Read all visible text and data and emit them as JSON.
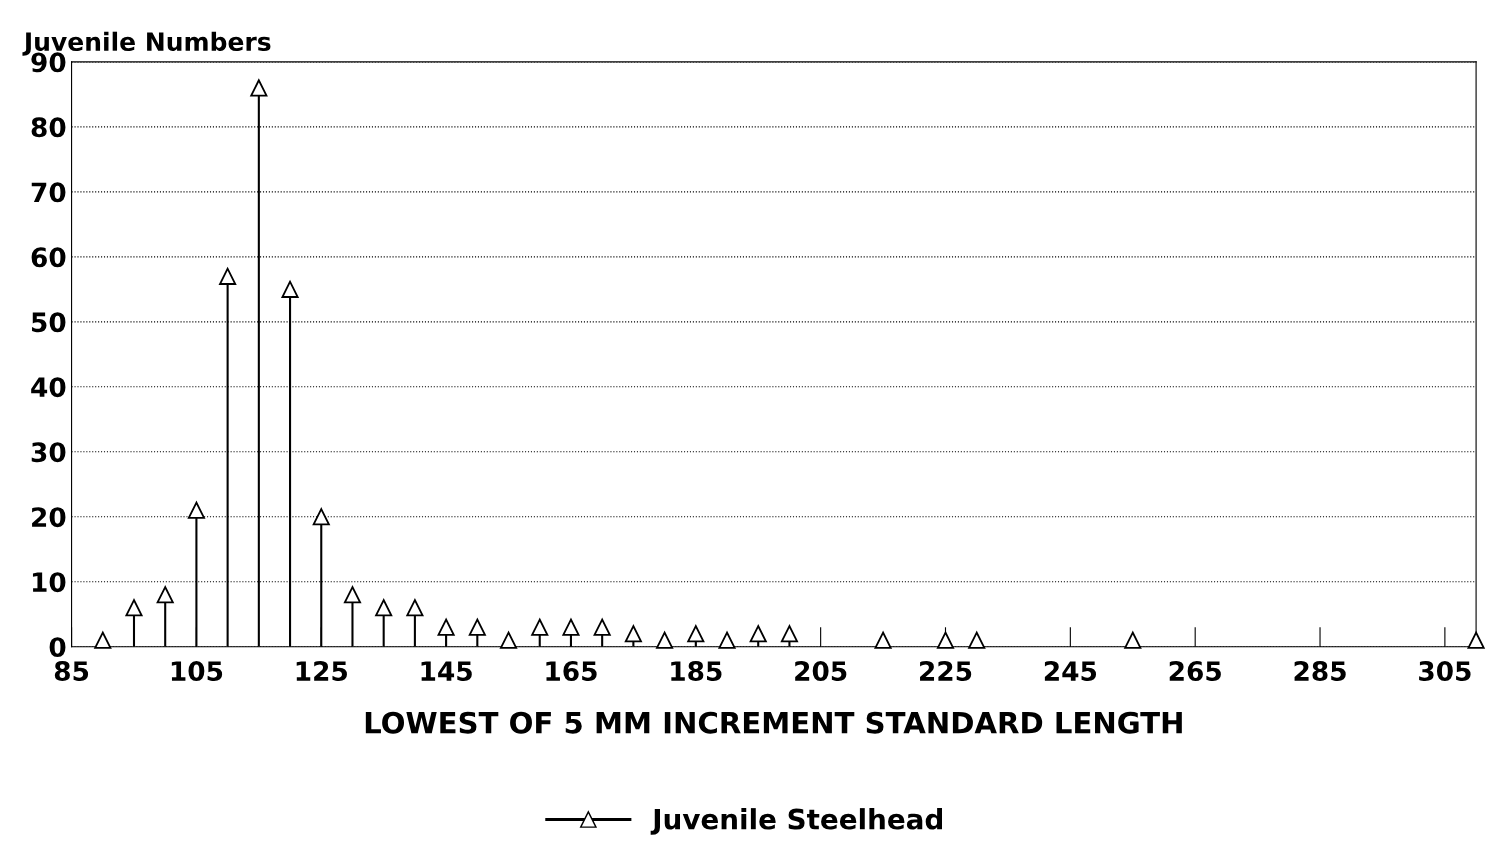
{
  "chart_data": {
    "type": "lollipop",
    "ylabel": "Juvenile Numbers",
    "xlabel": "LOWEST OF 5 MM INCREMENT STANDARD LENGTH",
    "x": [
      90,
      95,
      100,
      105,
      110,
      115,
      120,
      125,
      130,
      135,
      140,
      145,
      150,
      155,
      160,
      165,
      170,
      175,
      180,
      185,
      190,
      195,
      200,
      215,
      225,
      230,
      255,
      310
    ],
    "series": [
      {
        "name": "Juvenile Steelhead",
        "color": "#000000",
        "values": [
          1,
          6,
          8,
          21,
          57,
          86,
          55,
          20,
          8,
          6,
          6,
          3,
          3,
          1,
          3,
          3,
          3,
          2,
          1,
          2,
          1,
          2,
          2,
          1,
          1,
          1,
          1,
          1
        ]
      }
    ],
    "xlim": [
      85,
      310
    ],
    "xticks": [
      85,
      105,
      125,
      145,
      165,
      185,
      205,
      225,
      245,
      265,
      285,
      305
    ],
    "ylim": [
      0,
      90
    ],
    "yticks": [
      0,
      10,
      20,
      30,
      40,
      50,
      60,
      70,
      80,
      90
    ],
    "grid": "y",
    "legend": "bottom",
    "marker": "triangle",
    "line_style": "solid"
  }
}
